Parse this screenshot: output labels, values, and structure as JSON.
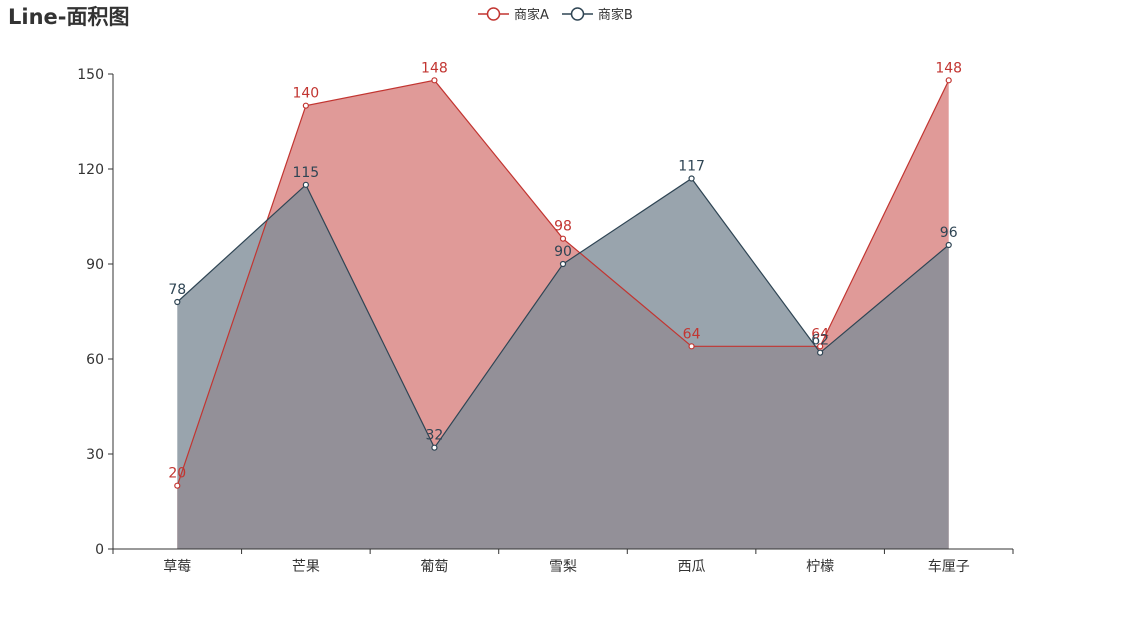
{
  "chart_data": {
    "type": "area",
    "title": "Line-面积图",
    "categories": [
      "草莓",
      "芒果",
      "葡萄",
      "雪梨",
      "西瓜",
      "柠檬",
      "车厘子"
    ],
    "series": [
      {
        "name": "商家A",
        "values": [
          20,
          140,
          148,
          98,
          64,
          64,
          148
        ],
        "color": "#c23531",
        "fill": "#e09a98"
      },
      {
        "name": "商家B",
        "values": [
          78,
          115,
          32,
          90,
          117,
          62,
          96
        ],
        "color": "#2f4554",
        "fill": "#7f8d98"
      }
    ],
    "yticks": [
      "0",
      "30",
      "60",
      "90",
      "120",
      "150"
    ],
    "ylim": [
      0,
      150
    ],
    "grid": false,
    "legend_position": "top-center"
  }
}
